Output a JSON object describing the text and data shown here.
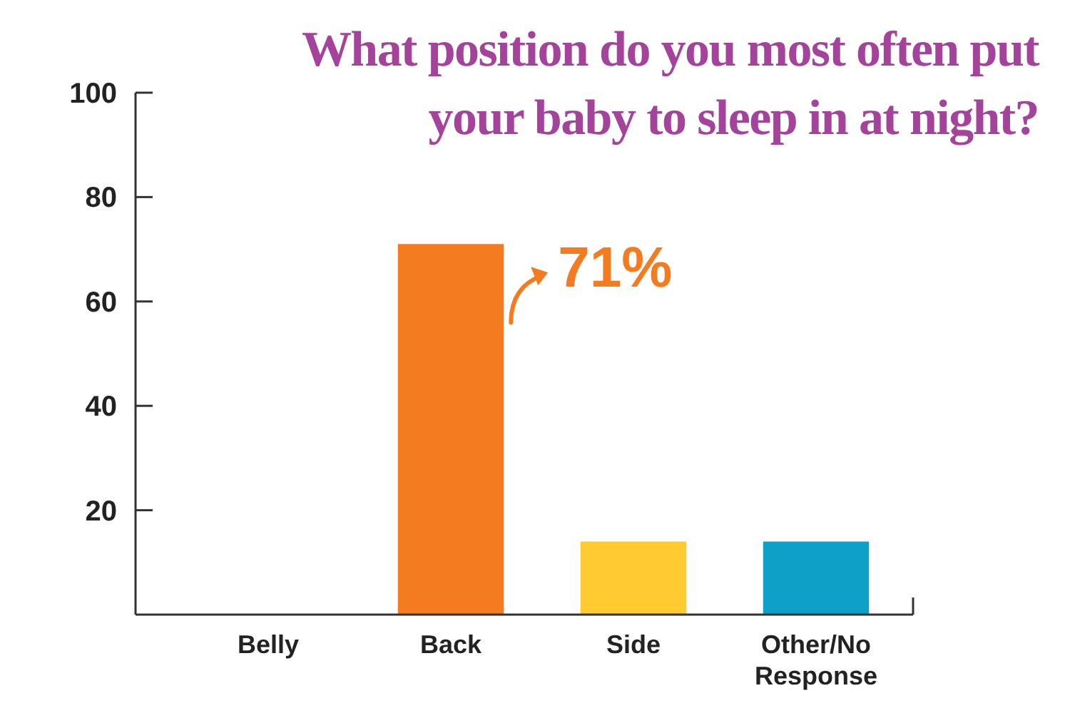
{
  "chart_data": {
    "type": "bar",
    "title": "What position do you most often put your baby to sleep in at night?",
    "categories": [
      "Belly",
      "Back",
      "Side",
      "Other/No Response"
    ],
    "values": [
      0,
      71,
      14,
      14
    ],
    "colors": [
      "#f47b20",
      "#f47b20",
      "#ffcb31",
      "#0ea0c6"
    ],
    "value_labels": [
      null,
      "71%",
      null,
      null
    ],
    "ylim": [
      0,
      100
    ],
    "yticks": [
      20,
      40,
      60,
      80,
      100
    ],
    "grid": false
  }
}
